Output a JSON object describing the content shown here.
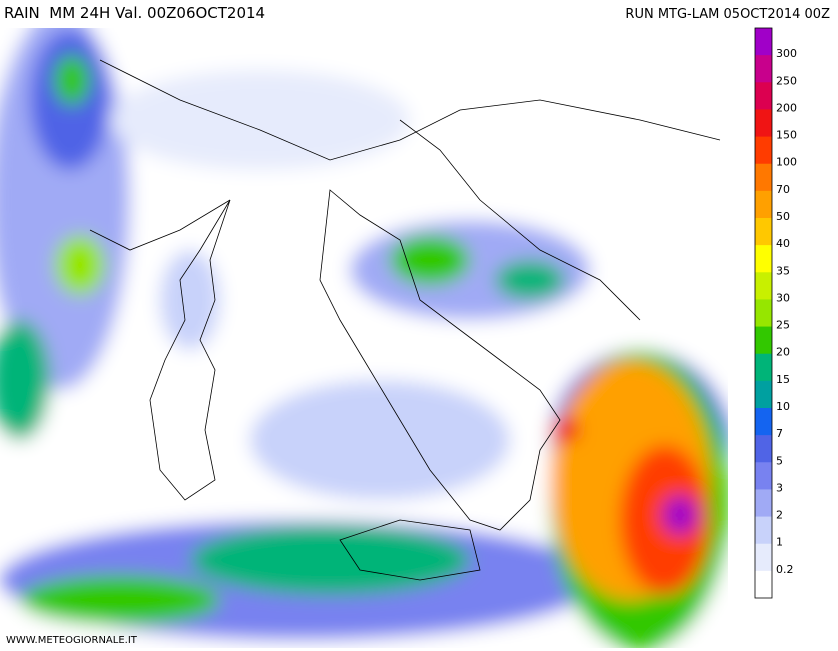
{
  "header": {
    "title": "RAIN  MM 24H Val. 00Z06OCT2014",
    "run": "RUN MTG-LAM 05OCT2014 00Z"
  },
  "footer": {
    "source": "WWW.METEOGIORNALE.IT"
  },
  "legend": {
    "labels": [
      "300",
      "250",
      "200",
      "150",
      "100",
      "70",
      "50",
      "40",
      "35",
      "30",
      "25",
      "20",
      "15",
      "10",
      "7",
      "5",
      "3",
      "2",
      "1",
      "0.2"
    ],
    "colors": [
      "#a000c8",
      "#c8008c",
      "#dc0050",
      "#f01414",
      "#ff3c00",
      "#ff7800",
      "#ffa000",
      "#ffc800",
      "#ffff00",
      "#c8f000",
      "#96e600",
      "#32c800",
      "#00b478",
      "#00a0a0",
      "#1464f0",
      "#5064e6",
      "#7882f0",
      "#a0aaf5",
      "#c8d2fa",
      "#e6ebfc",
      "#ffffff"
    ]
  }
}
